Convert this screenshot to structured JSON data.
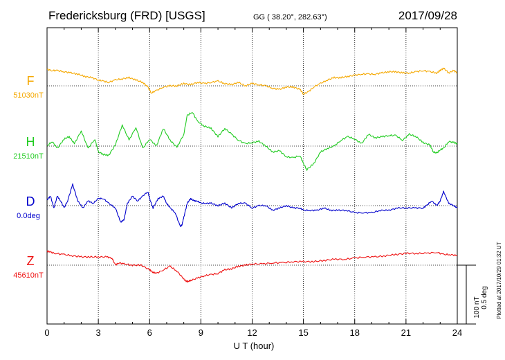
{
  "header": {
    "station": "Fredericksburg (FRD)  [USGS]",
    "coords": "GG ( 38.20°, 282.63°)",
    "date": "2017/09/28"
  },
  "footer": {
    "plotted": "Plotted at 2017/10/29 01:32 UT"
  },
  "scale": {
    "nt": "100 nT",
    "deg": "0.5 deg"
  },
  "chart_data": {
    "type": "line",
    "xlabel": "U T (hour)",
    "xlim": [
      0,
      24
    ],
    "x_ticks": [
      "0",
      "3",
      "6",
      "9",
      "12",
      "15",
      "18",
      "21",
      "24"
    ],
    "grid": true,
    "series": [
      {
        "name": "F",
        "baseline_label": "51030nT",
        "color": "#f5a800",
        "unit": "nT",
        "x": [
          0,
          0.3,
          0.6,
          1,
          1.4,
          1.8,
          2.2,
          2.6,
          3,
          3.3,
          3.6,
          4,
          4.4,
          4.8,
          5.2,
          5.6,
          5.9,
          6.1,
          6.4,
          6.8,
          7.2,
          7.6,
          8,
          8.4,
          8.8,
          9.2,
          9.6,
          10,
          10.4,
          10.8,
          11.2,
          11.6,
          12,
          12.4,
          12.8,
          13.2,
          13.6,
          14,
          14.4,
          14.8,
          15,
          15.3,
          15.6,
          16,
          16.4,
          16.8,
          17.2,
          17.6,
          18,
          18.4,
          18.8,
          19.2,
          19.6,
          20,
          20.4,
          20.8,
          21.2,
          21.6,
          22,
          22.4,
          22.8,
          23,
          23.2,
          23.5,
          23.8,
          24
        ],
        "values": [
          28,
          26,
          26,
          24,
          22,
          20,
          16,
          14,
          10,
          8,
          6,
          10,
          12,
          14,
          10,
          6,
          -2,
          -12,
          -8,
          -2,
          0,
          0,
          4,
          2,
          6,
          4,
          6,
          8,
          4,
          2,
          6,
          0,
          4,
          2,
          0,
          -4,
          -6,
          -2,
          -2,
          -6,
          -14,
          -10,
          -2,
          4,
          10,
          14,
          14,
          16,
          18,
          20,
          20,
          20,
          22,
          24,
          24,
          22,
          22,
          24,
          26,
          24,
          22,
          26,
          30,
          22,
          26,
          22
        ]
      },
      {
        "name": "H",
        "baseline_label": "21510nT",
        "color": "#22cc22",
        "unit": "nT",
        "x": [
          0,
          0.3,
          0.6,
          1,
          1.3,
          1.6,
          2,
          2.4,
          2.8,
          3,
          3.3,
          3.6,
          4,
          4.4,
          4.8,
          5.2,
          5.6,
          6,
          6.4,
          6.8,
          7.2,
          7.6,
          8,
          8.2,
          8.5,
          8.8,
          9.2,
          9.6,
          10,
          10.4,
          10.8,
          11.2,
          11.6,
          12,
          12.4,
          12.8,
          13.2,
          13.6,
          14,
          14.4,
          14.8,
          15,
          15.2,
          15.6,
          16,
          16.4,
          16.8,
          17.2,
          17.6,
          18,
          18.4,
          18.8,
          19.2,
          19.6,
          20,
          20.4,
          20.8,
          21.2,
          21.6,
          22,
          22.4,
          22.6,
          22.8,
          23,
          23.2,
          23.5,
          23.8,
          24
        ],
        "values": [
          0,
          8,
          -4,
          12,
          16,
          4,
          26,
          -4,
          12,
          -10,
          -14,
          -16,
          2,
          36,
          10,
          32,
          -4,
          12,
          0,
          30,
          10,
          -2,
          20,
          52,
          58,
          42,
          34,
          30,
          16,
          30,
          20,
          10,
          4,
          6,
          8,
          0,
          -10,
          -8,
          -18,
          -20,
          -16,
          -30,
          -40,
          -30,
          -10,
          -4,
          0,
          10,
          16,
          12,
          4,
          20,
          14,
          16,
          18,
          18,
          10,
          20,
          16,
          6,
          2,
          -10,
          -12,
          -6,
          -4,
          8,
          6,
          4
        ]
      },
      {
        "name": "D",
        "baseline_label": "0.0deg",
        "color": "#0000cc",
        "unit": "deg",
        "x": [
          0,
          0.2,
          0.4,
          0.6,
          0.8,
          1,
          1.2,
          1.5,
          1.8,
          2.1,
          2.4,
          2.7,
          3,
          3.3,
          3.6,
          4,
          4.3,
          4.5,
          4.7,
          5,
          5.3,
          5.6,
          5.9,
          6,
          6.2,
          6.5,
          6.8,
          7,
          7.2,
          7.5,
          7.8,
          7.9,
          8,
          8.2,
          8.4,
          8.6,
          8.8,
          9,
          9.3,
          9.6,
          10,
          10.4,
          10.8,
          11.2,
          11.6,
          12,
          12.4,
          12.8,
          13.2,
          13.6,
          14,
          14.4,
          14.8,
          15,
          15.4,
          15.8,
          16.2,
          16.6,
          17,
          17.5,
          18,
          18.5,
          19,
          19.5,
          20,
          20.5,
          21,
          21.5,
          22,
          22.2,
          22.5,
          22.8,
          23,
          23.2,
          23.5,
          23.8,
          24
        ],
        "values": [
          0.05,
          0.08,
          -0.02,
          0.08,
          0.04,
          -0.02,
          0.04,
          0.18,
          0.04,
          -0.02,
          0.04,
          0.02,
          0.06,
          0.06,
          0.02,
          -0.02,
          -0.14,
          -0.12,
          0.02,
          0.08,
          0.04,
          0.08,
          0.12,
          0.06,
          -0.02,
          0.06,
          0.08,
          0.02,
          -0.02,
          -0.06,
          -0.18,
          -0.16,
          -0.1,
          0.02,
          0.06,
          0.04,
          0.04,
          0.02,
          0.02,
          0.02,
          0,
          0.02,
          -0.02,
          0.02,
          0.02,
          -0.02,
          0,
          0,
          -0.04,
          -0.02,
          0,
          -0.02,
          -0.02,
          -0.04,
          -0.04,
          -0.04,
          -0.02,
          -0.04,
          -0.04,
          -0.04,
          -0.06,
          -0.06,
          -0.06,
          -0.04,
          -0.04,
          -0.02,
          -0.02,
          -0.02,
          -0.02,
          0,
          0.04,
          0,
          0.04,
          0.12,
          0.02,
          0,
          -0.02
        ]
      },
      {
        "name": "Z",
        "baseline_label": "45610nT",
        "color": "#ee1111",
        "unit": "nT",
        "x": [
          0,
          0.2,
          0.5,
          1,
          1.5,
          2,
          2.5,
          3,
          3.5,
          3.8,
          4,
          4.2,
          4.5,
          5,
          5.5,
          6,
          6.2,
          6.4,
          6.8,
          7.2,
          7.6,
          8,
          8.2,
          8.4,
          8.8,
          9.2,
          9.6,
          10,
          10.4,
          10.8,
          11.2,
          11.6,
          12,
          12.6,
          13.2,
          13.8,
          14.4,
          15,
          15.6,
          16.2,
          16.8,
          17.4,
          18,
          18.6,
          19.2,
          19.8,
          20.4,
          21,
          21.6,
          22.2,
          22.8,
          23.2,
          23.6,
          24
        ],
        "values": [
          24,
          22,
          20,
          18,
          16,
          14,
          14,
          14,
          14,
          12,
          0,
          4,
          2,
          0,
          0,
          -8,
          -12,
          -14,
          -8,
          -2,
          -10,
          -24,
          -28,
          -26,
          -22,
          -18,
          -16,
          -14,
          -8,
          -6,
          -2,
          0,
          2,
          2,
          4,
          4,
          6,
          6,
          6,
          8,
          10,
          10,
          12,
          14,
          14,
          16,
          18,
          20,
          20,
          20,
          22,
          18,
          18,
          16
        ]
      }
    ]
  }
}
